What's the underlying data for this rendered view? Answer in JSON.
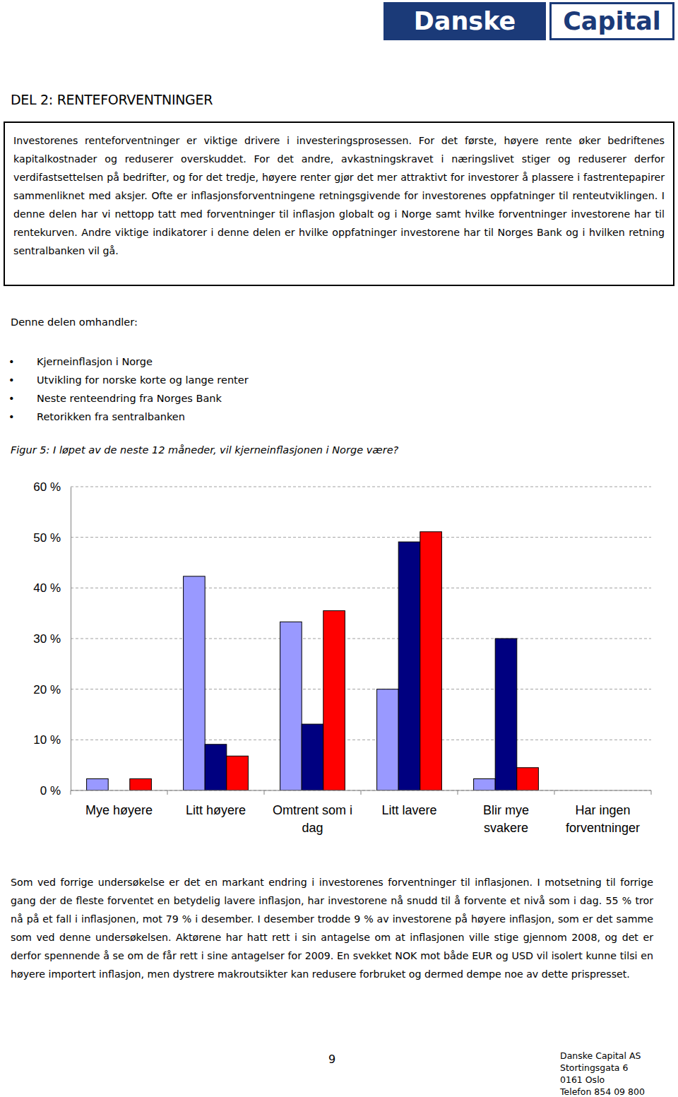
{
  "page": {
    "logo": [
      "Danske",
      "Capital"
    ],
    "section_title": "DEL 2: RENTEFORVENTNINGER",
    "intro": "Investorenes renteforventninger er viktige drivere i investeringsprosessen. For det første, høyere rente øker bedriftenes kapitalkostnader og reduserer overskuddet. For det andre, avkastningskravet i næringslivet stiger og reduserer derfor verdifastsettelsen på bedrifter, og for det tredje, høyere renter gjør det mer attraktivt for investorer å plassere i fastrentepapirer sammenliknet med aksjer. Ofte er inflasjonsforventningene retningsgivende for investorenes oppfatninger til renteutviklingen. I denne delen har vi nettopp tatt med forventninger til inflasjon globalt og i Norge samt hvilke forventninger investorene har til rentekurven. Andre viktige indikatorer i denne delen er hvilke oppfatninger investorene har til Norges Bank og i hvilken retning sentralbanken vil gå.",
    "list_heading": "Denne delen omhandler:",
    "list": [
      "Kjerneinflasjon i Norge",
      "Utvikling for norske korte og lange renter",
      "Neste renteendring fra Norges Bank",
      "Retorikken fra sentralbanken"
    ],
    "figure_caption": "Figur 5: I løpet av de neste 12 måneder, vil kjerneinflasjonen i Norge være?",
    "body": "Som ved forrige undersøkelse er det en markant endring i investorenes forventninger til inflasjonen. I motsetning til forrige gang der de fleste forventet en betydelig lavere inflasjon, har investorene nå snudd til å forvente et nivå som i dag. 55 % tror nå på et fall i inflasjonen, mot 79 % i desember. I desember trodde 9 % av investorene på høyere inflasjon, som er det samme som ved denne undersøkelsen. Aktørene har hatt rett i sin antagelse om at inflasjonen ville stige gjennom 2008, og det er derfor spennende å se om de får rett i sine antagelser for 2009. En svekket NOK mot både EUR og USD vil isolert kunne tilsi en høyere importert inflasjon, men dystrere makroutsikter kan redusere forbruket og dermed dempe noe av dette prispresset.",
    "page_number": 9,
    "footer": [
      "Danske Capital AS",
      "Stortingsgata 6",
      "0161 Oslo",
      "Telefon 854 09 800"
    ]
  },
  "chart_data": {
    "type": "bar",
    "categories": [
      "Mye høyere",
      "Litt høyere",
      "Omtrent som i dag",
      "Litt lavere",
      "Blir mye svakere",
      "Har ingen forventninger"
    ],
    "series": [
      {
        "color": "#9999ff",
        "values": [
          2.3,
          42.3,
          33.3,
          20,
          2.3,
          0
        ]
      },
      {
        "color": "#000080",
        "values": [
          0,
          9.1,
          13.1,
          49.1,
          30,
          0
        ]
      },
      {
        "color": "#ff0000",
        "values": [
          2.3,
          6.8,
          35.5,
          51.1,
          4.5,
          0
        ]
      }
    ],
    "ylim": [
      0,
      60
    ],
    "yticks": [
      {
        "value": 0,
        "label": "0 %"
      },
      {
        "value": 10,
        "label": "10 %"
      },
      {
        "value": 20,
        "label": "20 %"
      },
      {
        "value": 30,
        "label": "30 %"
      },
      {
        "value": 40,
        "label": "40 %"
      },
      {
        "value": 50,
        "label": "50 %"
      },
      {
        "value": 60,
        "label": "60 %"
      }
    ],
    "grid": true
  }
}
